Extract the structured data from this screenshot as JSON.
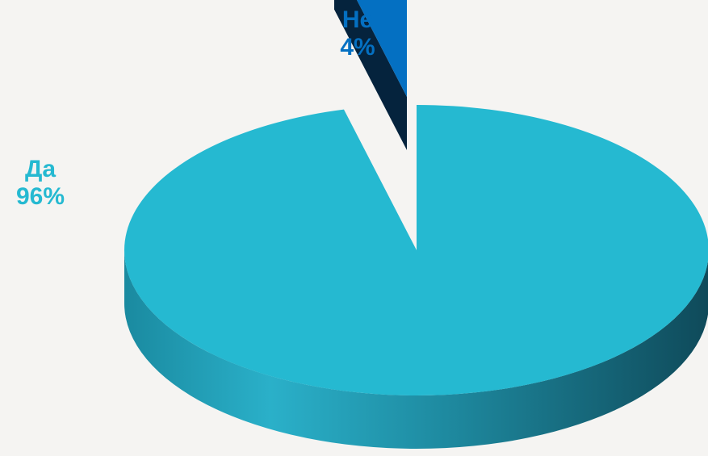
{
  "chart_data": {
    "type": "pie",
    "categories": [
      "Да",
      "Не"
    ],
    "values": [
      96,
      4
    ],
    "value_labels": [
      "96%",
      "4%"
    ],
    "colors": [
      "#25b9d1",
      "#0470c2"
    ],
    "style": "3d-exploded"
  }
}
